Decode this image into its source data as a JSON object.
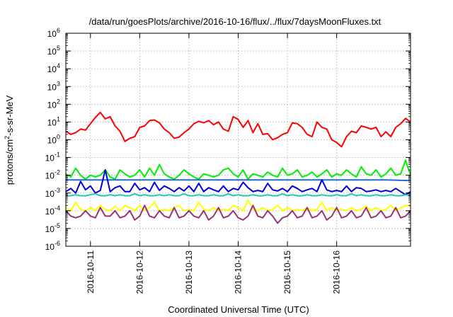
{
  "chart_data": {
    "type": "line",
    "title": "/data/run/goesPlots/archive/2016-10-16/flux/../flux/7daysMoonFluxes.txt",
    "xlabel": "Coordinated Universal Time (UTC)",
    "ylabel": {
      "base": "protons/cm",
      "sup": "2",
      "rest": "-s-sr-MeV"
    },
    "yscale": "log",
    "ylim": [
      1e-06,
      1000000.0
    ],
    "xlim": [
      0,
      7
    ],
    "grid": true,
    "legend": "none",
    "y_ticks": [
      {
        "value": 1e-06,
        "base": "10",
        "exp": "-6"
      },
      {
        "value": 1e-05,
        "base": "10",
        "exp": "-5"
      },
      {
        "value": 0.0001,
        "base": "10",
        "exp": "-4"
      },
      {
        "value": 0.001,
        "base": "10",
        "exp": "-3"
      },
      {
        "value": 0.01,
        "base": "10",
        "exp": "-2"
      },
      {
        "value": 0.1,
        "base": "10",
        "exp": "-1"
      },
      {
        "value": 1,
        "base": "10",
        "exp": "0"
      },
      {
        "value": 10,
        "base": "10",
        "exp": "1"
      },
      {
        "value": 100,
        "base": "10",
        "exp": "2"
      },
      {
        "value": 1000,
        "base": "10",
        "exp": "3"
      },
      {
        "value": 10000,
        "base": "10",
        "exp": "4"
      },
      {
        "value": 100000,
        "base": "10",
        "exp": "5"
      },
      {
        "value": 1000000,
        "base": "10",
        "exp": "6"
      }
    ],
    "x_ticks": [
      {
        "value": 0.5,
        "label": "2016-10-11"
      },
      {
        "value": 1.5,
        "label": "2016-10-12"
      },
      {
        "value": 2.5,
        "label": "2016-10-13"
      },
      {
        "value": 3.5,
        "label": "2016-10-14"
      },
      {
        "value": 4.5,
        "label": "2016-10-15"
      },
      {
        "value": 5.5,
        "label": "2016-10-16"
      }
    ],
    "series": [
      {
        "color": "#ff0000",
        "x": [
          0,
          0.1,
          0.2,
          0.3,
          0.4,
          0.5,
          0.6,
          0.7,
          0.8,
          0.9,
          1.0,
          1.1,
          1.2,
          1.3,
          1.4,
          1.5,
          1.6,
          1.7,
          1.8,
          1.9,
          2.0,
          2.1,
          2.2,
          2.3,
          2.4,
          2.5,
          2.6,
          2.7,
          2.8,
          2.9,
          3.0,
          3.1,
          3.2,
          3.3,
          3.4,
          3.5,
          3.6,
          3.7,
          3.8,
          3.9,
          4.0,
          4.1,
          4.2,
          4.3,
          4.4,
          4.5,
          4.6,
          4.7,
          4.8,
          4.9,
          5.0,
          5.1,
          5.2,
          5.3,
          5.4,
          5.5,
          5.6,
          5.7,
          5.8,
          5.9,
          6.0,
          6.1,
          6.2,
          6.3,
          6.4,
          6.5,
          6.6,
          6.7,
          6.8,
          6.9,
          7.0
        ],
        "values": [
          3,
          2,
          2.5,
          4,
          3.5,
          8,
          18,
          35,
          15,
          20,
          6,
          3,
          0.8,
          1.2,
          1.5,
          5,
          6,
          12,
          13,
          9,
          4,
          2.5,
          1.2,
          1.4,
          2.5,
          4,
          8,
          11,
          9,
          12,
          7,
          10,
          4,
          3,
          20,
          14,
          5,
          12,
          2.5,
          8,
          2,
          2.2,
          1,
          1.3,
          2,
          2.5,
          9,
          8,
          5,
          2,
          1.5,
          10,
          5,
          4,
          1,
          0.7,
          0.4,
          1.5,
          3,
          2.5,
          6,
          5,
          4,
          5,
          1.5,
          2.8,
          1.5,
          5,
          8,
          16,
          10
        ]
      },
      {
        "color": "#00ee00",
        "x": [
          0,
          0.1,
          0.2,
          0.3,
          0.4,
          0.5,
          0.6,
          0.7,
          0.8,
          0.9,
          1.0,
          1.1,
          1.2,
          1.3,
          1.4,
          1.5,
          1.6,
          1.7,
          1.8,
          1.9,
          2.0,
          2.1,
          2.2,
          2.3,
          2.4,
          2.5,
          2.6,
          2.7,
          2.8,
          2.9,
          3.0,
          3.1,
          3.2,
          3.3,
          3.4,
          3.5,
          3.6,
          3.7,
          3.8,
          3.9,
          4.0,
          4.1,
          4.2,
          4.3,
          4.4,
          4.5,
          4.6,
          4.7,
          4.8,
          4.9,
          5.0,
          5.1,
          5.2,
          5.3,
          5.4,
          5.5,
          5.6,
          5.7,
          5.8,
          5.9,
          6.0,
          6.1,
          6.2,
          6.3,
          6.4,
          6.5,
          6.6,
          6.7,
          6.8,
          6.9,
          7.0
        ],
        "values": [
          0.012,
          0.008,
          0.025,
          0.01,
          0.006,
          0.01,
          0.008,
          0.01,
          0.02,
          0.008,
          0.006,
          0.02,
          0.012,
          0.008,
          0.01,
          0.02,
          0.008,
          0.025,
          0.01,
          0.04,
          0.012,
          0.008,
          0.006,
          0.01,
          0.02,
          0.012,
          0.008,
          0.006,
          0.012,
          0.01,
          0.008,
          0.01,
          0.02,
          0.025,
          0.012,
          0.008,
          0.02,
          0.006,
          0.012,
          0.01,
          0.008,
          0.015,
          0.01,
          0.008,
          0.025,
          0.01,
          0.012,
          0.02,
          0.008,
          0.01,
          0.015,
          0.008,
          0.012,
          0.02,
          0.008,
          0.012,
          0.01,
          0.02,
          0.012,
          0.008,
          0.03,
          0.012,
          0.01,
          0.02,
          0.008,
          0.012,
          0.025,
          0.01,
          0.012,
          0.07,
          0.01
        ]
      },
      {
        "color": "#1e6cdc",
        "x": [
          0,
          0.5,
          1.0,
          1.5,
          2.0,
          2.5,
          3.0,
          3.5,
          4.0,
          4.5,
          5.0,
          5.5,
          6.0,
          6.5,
          7.0
        ],
        "values": [
          0.0055,
          0.0055,
          0.0055,
          0.0055,
          0.0055,
          0.0055,
          0.0055,
          0.0055,
          0.0055,
          0.0055,
          0.0055,
          0.0055,
          0.0055,
          0.0055,
          0.005
        ]
      },
      {
        "color": "#0000dd",
        "x": [
          0,
          0.1,
          0.2,
          0.3,
          0.4,
          0.5,
          0.6,
          0.7,
          0.8,
          0.9,
          1.0,
          1.1,
          1.2,
          1.3,
          1.4,
          1.5,
          1.6,
          1.7,
          1.8,
          1.9,
          2.0,
          2.1,
          2.2,
          2.3,
          2.4,
          2.5,
          2.6,
          2.7,
          2.8,
          2.9,
          3.0,
          3.1,
          3.2,
          3.3,
          3.4,
          3.5,
          3.6,
          3.7,
          3.8,
          3.9,
          4.0,
          4.1,
          4.2,
          4.3,
          4.4,
          4.5,
          4.6,
          4.7,
          4.8,
          4.9,
          5.0,
          5.1,
          5.2,
          5.3,
          5.4,
          5.5,
          5.6,
          5.7,
          5.8,
          5.9,
          6.0,
          6.1,
          6.2,
          6.3,
          6.4,
          6.5,
          6.6,
          6.7,
          6.8,
          6.9,
          7.0
        ],
        "values": [
          0.0012,
          0.0018,
          0.001,
          0.0045,
          0.0015,
          0.0025,
          0.001,
          0.0014,
          0.02,
          0.0012,
          0.002,
          0.0025,
          0.0012,
          0.0012,
          0.0035,
          0.0015,
          0.002,
          0.0012,
          0.004,
          0.0014,
          0.0025,
          0.0018,
          0.0012,
          0.002,
          0.0013,
          0.0025,
          0.0012,
          0.0035,
          0.0012,
          0.002,
          0.0015,
          0.0012,
          0.0025,
          0.0012,
          0.0018,
          0.0015,
          0.004,
          0.002,
          0.0012,
          0.0014,
          0.0012,
          0.0035,
          0.0015,
          0.0013,
          0.0018,
          0.0012,
          0.0025,
          0.0018,
          0.0012,
          0.0015,
          0.0018,
          0.0012,
          0.0055,
          0.0015,
          0.0012,
          0.0014,
          0.0012,
          0.0025,
          0.0012,
          0.002,
          0.0018,
          0.0012,
          0.0013,
          0.0015,
          0.0012,
          0.0014,
          0.0012,
          0.0018,
          0.0012,
          0.0008,
          0.0012
        ]
      },
      {
        "color": "#20c8b0",
        "x": [
          0,
          0.1,
          0.2,
          0.3,
          0.4,
          0.5,
          0.6,
          0.7,
          0.8,
          0.9,
          1.0,
          1.1,
          1.2,
          1.3,
          1.4,
          1.5,
          1.6,
          1.7,
          1.8,
          1.9,
          2.0,
          2.1,
          2.2,
          2.3,
          2.4,
          2.5,
          2.6,
          2.7,
          2.8,
          2.9,
          3.0,
          3.1,
          3.2,
          3.3,
          3.4,
          3.5,
          3.6,
          3.7,
          3.8,
          3.9,
          4.0,
          4.1,
          4.2,
          4.3,
          4.4,
          4.5,
          4.6,
          4.7,
          4.8,
          4.9,
          5.0,
          5.1,
          5.2,
          5.3,
          5.4,
          5.5,
          5.6,
          5.7,
          5.8,
          5.9,
          6.0,
          6.1,
          6.2,
          6.3,
          6.4,
          6.5,
          6.6,
          6.7,
          6.8,
          6.9,
          7.0
        ],
        "values": [
          0.0007,
          0.0007,
          0.0008,
          0.0007,
          0.0007,
          0.0008,
          0.0009,
          0.0007,
          0.0007,
          0.0008,
          0.0007,
          0.0008,
          0.0007,
          0.0007,
          0.0009,
          0.0007,
          0.0008,
          0.0007,
          0.0007,
          0.0008,
          0.0007,
          0.0008,
          0.0007,
          0.0007,
          0.0009,
          0.0007,
          0.0007,
          0.0008,
          0.0007,
          0.0007,
          0.0008,
          0.0007,
          0.0007,
          0.0009,
          0.0007,
          0.0008,
          0.0007,
          0.0007,
          0.0008,
          0.0007,
          0.0007,
          0.0008,
          0.0007,
          0.0007,
          0.0009,
          0.0007,
          0.0008,
          0.0007,
          0.0007,
          0.0008,
          0.0007,
          0.0007,
          0.0008,
          0.0007,
          0.0007,
          0.0008,
          0.0007,
          0.0007,
          0.0009,
          0.0007,
          0.0008,
          0.0007,
          0.0007,
          0.0008,
          0.0007,
          0.0007,
          0.0008,
          0.0007,
          0.0007,
          0.0008,
          0.0007
        ]
      },
      {
        "color": "#ffff00",
        "x": [
          0,
          0.1,
          0.2,
          0.3,
          0.4,
          0.5,
          0.6,
          0.7,
          0.8,
          0.9,
          1.0,
          1.1,
          1.2,
          1.3,
          1.4,
          1.5,
          1.6,
          1.7,
          1.8,
          1.9,
          2.0,
          2.1,
          2.2,
          2.3,
          2.4,
          2.5,
          2.6,
          2.7,
          2.8,
          2.9,
          3.0,
          3.1,
          3.2,
          3.3,
          3.4,
          3.5,
          3.6,
          3.7,
          3.8,
          3.9,
          4.0,
          4.1,
          4.2,
          4.3,
          4.4,
          4.5,
          4.6,
          4.7,
          4.8,
          4.9,
          5.0,
          5.1,
          5.2,
          5.3,
          5.4,
          5.5,
          5.6,
          5.7,
          5.8,
          5.9,
          6.0,
          6.1,
          6.2,
          6.3,
          6.4,
          6.5,
          6.6,
          6.7,
          6.8,
          6.9,
          7.0
        ],
        "values": [
          0.00015,
          0.0001,
          0.0003,
          0.00012,
          0.0001,
          0.00015,
          0.0001,
          0.0002,
          0.00012,
          0.0001,
          0.00018,
          0.0001,
          0.0002,
          0.00015,
          0.0001,
          0.0002,
          0.0001,
          0.00015,
          0.0003,
          0.0001,
          0.00012,
          0.0001,
          0.00015,
          0.0002,
          0.0001,
          0.00012,
          0.0001,
          0.0003,
          0.00012,
          0.0001,
          0.00015,
          0.0001,
          0.00012,
          0.0001,
          0.0002,
          0.00015,
          0.0001,
          0.0004,
          0.00012,
          0.0001,
          0.00015,
          0.0001,
          0.00012,
          0.0002,
          0.0001,
          0.00015,
          0.0001,
          0.00012,
          0.0001,
          0.00015,
          0.0001,
          0.00012,
          0.0003,
          0.0001,
          0.00015,
          0.0001,
          0.00012,
          0.0001,
          0.00015,
          0.0001,
          0.00012,
          0.00018,
          0.0001,
          0.00015,
          0.0001,
          0.00012,
          0.0002,
          0.0001,
          0.00015,
          0.0002,
          0.00018
        ]
      },
      {
        "color": "#993377",
        "x": [
          0,
          0.1,
          0.2,
          0.3,
          0.4,
          0.5,
          0.6,
          0.7,
          0.8,
          0.9,
          1.0,
          1.1,
          1.2,
          1.3,
          1.4,
          1.5,
          1.6,
          1.7,
          1.8,
          1.9,
          2.0,
          2.1,
          2.2,
          2.3,
          2.4,
          2.5,
          2.6,
          2.7,
          2.8,
          2.9,
          3.0,
          3.1,
          3.2,
          3.3,
          3.4,
          3.5,
          3.6,
          3.7,
          3.8,
          3.9,
          4.0,
          4.1,
          4.2,
          4.3,
          4.4,
          4.5,
          4.6,
          4.7,
          4.8,
          4.9,
          5.0,
          5.1,
          5.2,
          5.3,
          5.4,
          5.5,
          5.6,
          5.7,
          5.8,
          5.9,
          6.0,
          6.1,
          6.2,
          6.3,
          6.4,
          6.5,
          6.6,
          6.7,
          6.8,
          6.9,
          7.0
        ],
        "values": [
          0.0001,
          5e-05,
          4e-05,
          5e-05,
          0.0001,
          5e-05,
          4e-05,
          0.00015,
          5e-05,
          5e-05,
          0.0001,
          4e-05,
          5e-05,
          0.0001,
          3e-05,
          5e-05,
          0.0002,
          5e-05,
          4e-05,
          0.0001,
          5e-05,
          4e-05,
          0.00015,
          4e-05,
          5e-05,
          0.0001,
          5e-05,
          4e-05,
          0.0001,
          3e-05,
          5e-05,
          0.00015,
          4e-05,
          5e-05,
          0.0001,
          4e-05,
          3e-05,
          5e-05,
          0.0002,
          5e-05,
          4e-05,
          0.0001,
          5e-05,
          2e-05,
          4e-05,
          5e-05,
          0.0001,
          4e-05,
          5e-05,
          0.00015,
          4e-05,
          5e-05,
          0.0001,
          3e-05,
          5e-05,
          0.00015,
          4e-05,
          5e-05,
          0.0001,
          4e-05,
          5e-05,
          0.00015,
          4e-05,
          5e-05,
          0.0001,
          4e-05,
          5e-05,
          0.00015,
          4e-05,
          5e-05,
          0.0001
        ]
      }
    ]
  }
}
